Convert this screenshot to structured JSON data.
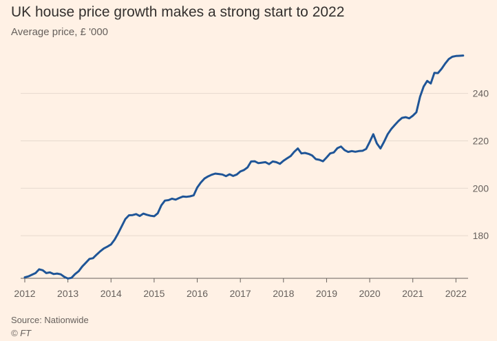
{
  "title": "UK house price growth makes a strong start to 2022",
  "subtitle": "Average price, £ '000",
  "source": "Source: Nationwide",
  "credit": "© FT",
  "colors": {
    "background": "#fff1e5",
    "line": "#1f5597",
    "grid": "#e6d9ce",
    "axis": "#66605c"
  },
  "chart_data": {
    "type": "line",
    "title": "UK house price growth makes a strong start to 2022",
    "subtitle": "Average price, £ '000",
    "xlabel": "",
    "ylabel": "",
    "xlim": [
      2012,
      2022.25
    ],
    "ylim": [
      162,
      262
    ],
    "y_axis_side": "right",
    "grid": "horizontal",
    "x_ticks": [
      2012,
      2013,
      2014,
      2015,
      2016,
      2017,
      2018,
      2019,
      2020,
      2021,
      2022
    ],
    "y_ticks": [
      180,
      200,
      220,
      240
    ],
    "series": [
      {
        "x": [
          2012.0,
          2012.083,
          2012.167,
          2012.25,
          2012.333,
          2012.417,
          2012.5,
          2012.583,
          2012.667,
          2012.75,
          2012.833,
          2012.917,
          2013.0,
          2013.083,
          2013.167,
          2013.25,
          2013.333,
          2013.417,
          2013.5,
          2013.583,
          2013.667,
          2013.75,
          2013.833,
          2013.917,
          2014.0,
          2014.083,
          2014.167,
          2014.25,
          2014.333,
          2014.417,
          2014.5,
          2014.583,
          2014.667,
          2014.75,
          2014.833,
          2014.917,
          2015.0,
          2015.083,
          2015.167,
          2015.25,
          2015.333,
          2015.417,
          2015.5,
          2015.583,
          2015.667,
          2015.75,
          2015.833,
          2015.917,
          2016.0,
          2016.083,
          2016.167,
          2016.25,
          2016.333,
          2016.417,
          2016.5,
          2016.583,
          2016.667,
          2016.75,
          2016.833,
          2016.917,
          2017.0,
          2017.083,
          2017.167,
          2017.25,
          2017.333,
          2017.417,
          2017.5,
          2017.583,
          2017.667,
          2017.75,
          2017.833,
          2017.917,
          2018.0,
          2018.083,
          2018.167,
          2018.25,
          2018.333,
          2018.417,
          2018.5,
          2018.583,
          2018.667,
          2018.75,
          2018.833,
          2018.917,
          2019.0,
          2019.083,
          2019.167,
          2019.25,
          2019.333,
          2019.417,
          2019.5,
          2019.583,
          2019.667,
          2019.75,
          2019.833,
          2019.917,
          2020.0,
          2020.083,
          2020.167,
          2020.25,
          2020.333,
          2020.417,
          2020.5,
          2020.583,
          2020.667,
          2020.75,
          2020.833,
          2020.917,
          2021.0,
          2021.083,
          2021.167,
          2021.25,
          2021.333,
          2021.417,
          2021.5,
          2021.583,
          2021.667,
          2021.75,
          2021.833,
          2021.917,
          2022.0,
          2022.083,
          2022.167
        ],
        "values": [
          162.4,
          162.8,
          163.5,
          164.2,
          165.8,
          165.4,
          164.2,
          164.5,
          163.8,
          164.0,
          163.7,
          162.6,
          161.9,
          162.2,
          163.8,
          165.0,
          167.0,
          168.6,
          170.2,
          170.5,
          172.0,
          173.4,
          174.6,
          175.4,
          176.3,
          178.3,
          181.0,
          184.0,
          187.0,
          188.6,
          188.7,
          189.1,
          188.3,
          189.3,
          188.8,
          188.4,
          188.2,
          189.4,
          192.8,
          194.8,
          195.0,
          195.6,
          195.2,
          195.9,
          196.5,
          196.4,
          196.6,
          197.0,
          200.3,
          202.4,
          204.1,
          205.0,
          205.7,
          206.2,
          206.0,
          205.8,
          205.1,
          205.9,
          205.2,
          205.8,
          207.1,
          207.7,
          208.8,
          211.3,
          211.4,
          210.6,
          210.8,
          211.0,
          210.2,
          211.3,
          211.0,
          210.3,
          211.6,
          212.6,
          213.6,
          215.4,
          216.8,
          214.7,
          214.9,
          214.5,
          213.8,
          212.3,
          212.0,
          211.4,
          213.0,
          214.7,
          215.1,
          216.9,
          217.6,
          216.1,
          215.3,
          215.7,
          215.4,
          215.7,
          215.8,
          216.6,
          219.6,
          222.8,
          218.9,
          216.8,
          219.6,
          222.8,
          225.0,
          226.7,
          228.4,
          229.7,
          230.0,
          229.5,
          230.6,
          232.1,
          238.6,
          242.9,
          245.3,
          244.2,
          248.7,
          248.6,
          250.4,
          252.6,
          254.5,
          255.5,
          255.8,
          255.9,
          256.0
        ]
      }
    ]
  }
}
